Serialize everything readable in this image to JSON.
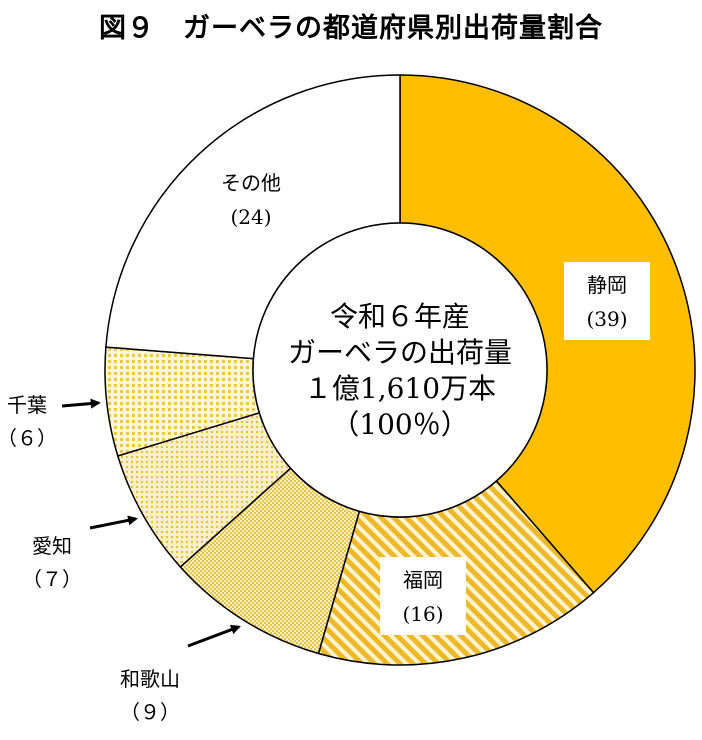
{
  "chart_data": {
    "type": "pie",
    "title": "図９　ガーベラの都道府県別出荷量割合",
    "center_label": [
      "令和６年産",
      "ガーベラの出荷量",
      "１億1,610万本",
      "（100％）"
    ],
    "slices": [
      {
        "name": "静岡",
        "value": 39,
        "value_label": "(39)",
        "color": "#FFBF00",
        "fill": "solid"
      },
      {
        "name": "福岡",
        "value": 16,
        "value_label": "(16)",
        "color": "#F2C238",
        "fill": "diagonal-stripes"
      },
      {
        "name": "和歌山",
        "value": 9,
        "value_label": "（９）",
        "color": "#E8C640",
        "fill": "dense-dots"
      },
      {
        "name": "愛知",
        "value": 7,
        "value_label": "（７）",
        "color": "#F4D98A",
        "fill": "fine-dots"
      },
      {
        "name": "千葉",
        "value": 6,
        "value_label": "（６）",
        "color": "#F4DF8A",
        "fill": "sparse-dots"
      },
      {
        "name": "その他",
        "value": 24,
        "value_label": "(24)",
        "color": "#FFFFFF",
        "fill": "none"
      }
    ],
    "unit": "%",
    "legend": "none"
  }
}
